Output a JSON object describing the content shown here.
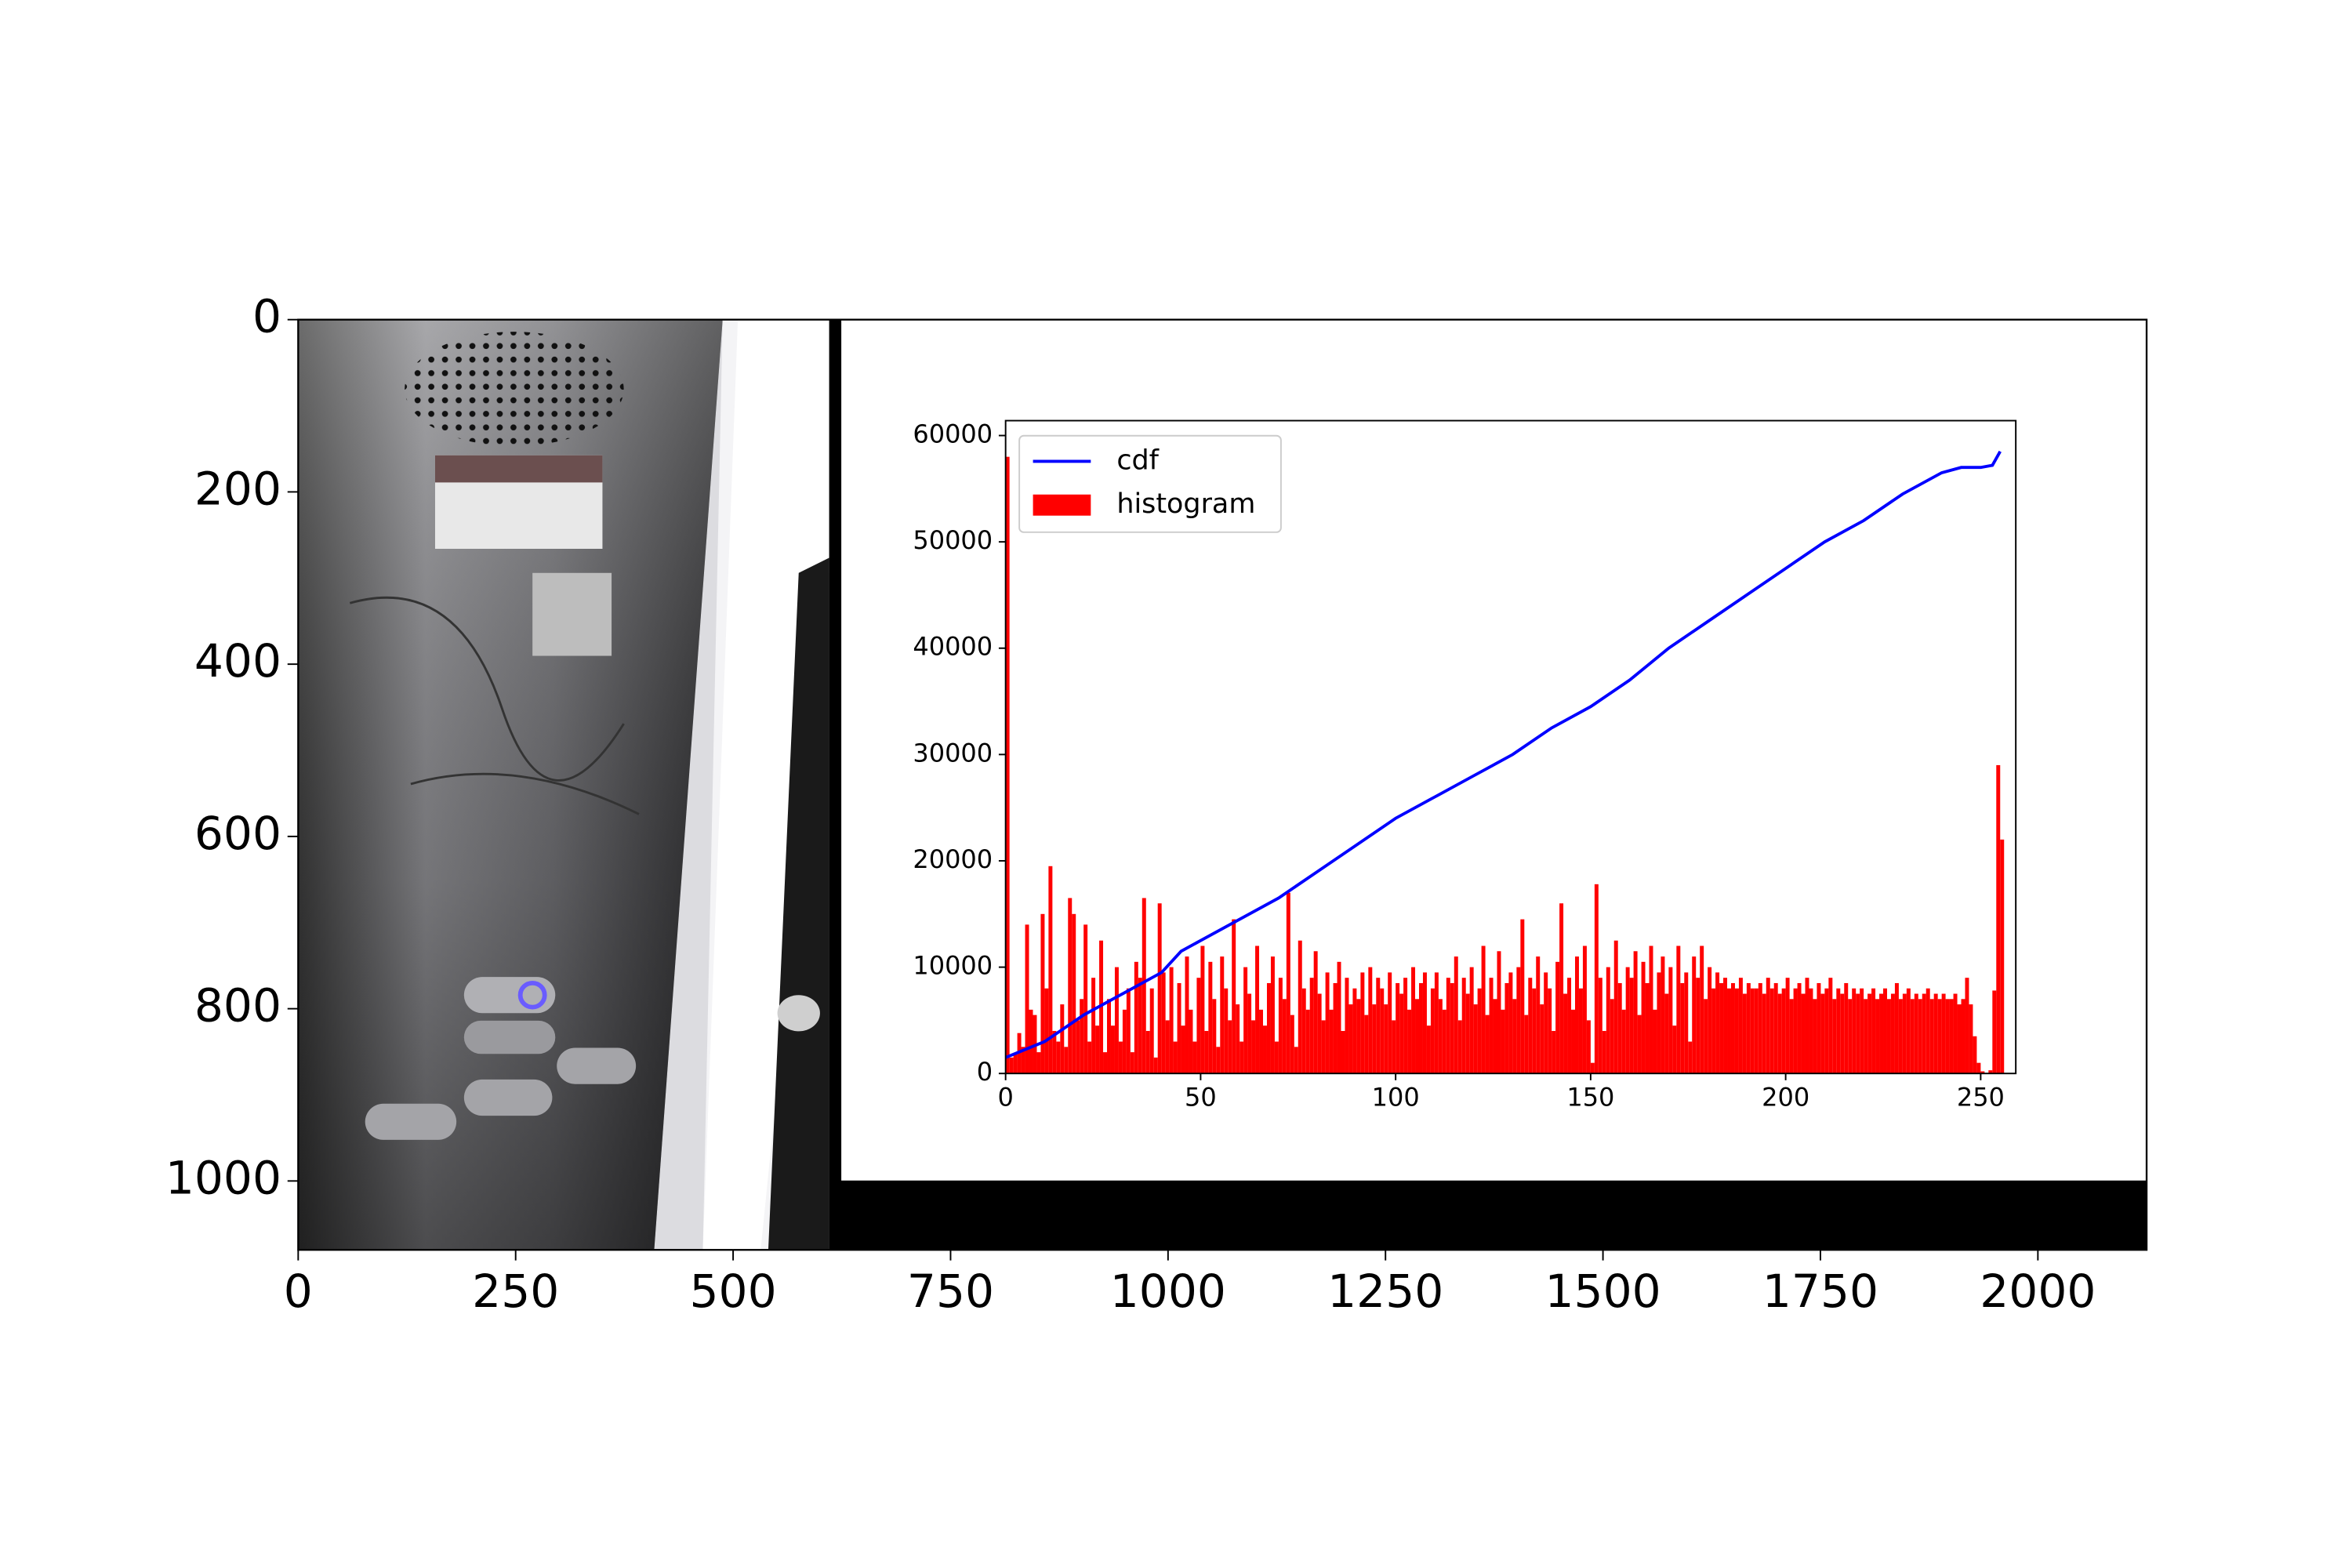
{
  "chart_data": [
    {
      "type": "image",
      "xlim": [
        0,
        2125
      ],
      "ylim": [
        1080,
        0
      ],
      "xticks": [
        0,
        250,
        500,
        750,
        1000,
        1250,
        1500,
        1750,
        2000
      ],
      "yticks": [
        0,
        200,
        400,
        600,
        800,
        1000
      ]
    },
    {
      "type": "histogram",
      "xlim": [
        0,
        259
      ],
      "ylim": [
        0,
        61400
      ],
      "xticks": [
        0,
        50,
        100,
        150,
        200,
        250
      ],
      "yticks": [
        0,
        10000,
        20000,
        30000,
        40000,
        50000,
        60000
      ],
      "legend": "upper left",
      "series": [
        {
          "name": "cdf",
          "type": "line",
          "color": "#0000ff",
          "x": [
            0,
            10,
            20,
            30,
            40,
            45,
            50,
            60,
            70,
            80,
            90,
            100,
            110,
            120,
            130,
            140,
            150,
            160,
            170,
            180,
            190,
            200,
            210,
            220,
            230,
            240,
            245,
            250,
            253,
            255
          ],
          "values": [
            1500,
            3000,
            5500,
            7500,
            9500,
            11500,
            12500,
            14500,
            16500,
            19000,
            21500,
            24000,
            26000,
            28000,
            30000,
            32500,
            34500,
            37000,
            40000,
            42500,
            45000,
            47500,
            50000,
            52000,
            54500,
            56500,
            57000,
            57000,
            57200,
            58500
          ]
        },
        {
          "name": "histogram",
          "type": "histogram",
          "color": "#ff0000",
          "bins": [
            0,
            1,
            2,
            3,
            4,
            5,
            6,
            7,
            8,
            9,
            10,
            11,
            12,
            13,
            14,
            15,
            16,
            17,
            18,
            19,
            20,
            21,
            22,
            23,
            24,
            25,
            26,
            27,
            28,
            29,
            30,
            31,
            32,
            33,
            34,
            35,
            36,
            37,
            38,
            39,
            40,
            41,
            42,
            43,
            44,
            45,
            46,
            47,
            48,
            49,
            50,
            51,
            52,
            53,
            54,
            55,
            56,
            57,
            58,
            59,
            60,
            61,
            62,
            63,
            64,
            65,
            66,
            67,
            68,
            69,
            70,
            71,
            72,
            73,
            74,
            75,
            76,
            77,
            78,
            79,
            80,
            81,
            82,
            83,
            84,
            85,
            86,
            87,
            88,
            89,
            90,
            91,
            92,
            93,
            94,
            95,
            96,
            97,
            98,
            99,
            100,
            101,
            102,
            103,
            104,
            105,
            106,
            107,
            108,
            109,
            110,
            111,
            112,
            113,
            114,
            115,
            116,
            117,
            118,
            119,
            120,
            121,
            122,
            123,
            124,
            125,
            126,
            127,
            128,
            129,
            130,
            131,
            132,
            133,
            134,
            135,
            136,
            137,
            138,
            139,
            140,
            141,
            142,
            143,
            144,
            145,
            146,
            147,
            148,
            149,
            150,
            151,
            152,
            153,
            154,
            155,
            156,
            157,
            158,
            159,
            160,
            161,
            162,
            163,
            164,
            165,
            166,
            167,
            168,
            169,
            170,
            171,
            172,
            173,
            174,
            175,
            176,
            177,
            178,
            179,
            180,
            181,
            182,
            183,
            184,
            185,
            186,
            187,
            188,
            189,
            190,
            191,
            192,
            193,
            194,
            195,
            196,
            197,
            198,
            199,
            200,
            201,
            202,
            203,
            204,
            205,
            206,
            207,
            208,
            209,
            210,
            211,
            212,
            213,
            214,
            215,
            216,
            217,
            218,
            219,
            220,
            221,
            222,
            223,
            224,
            225,
            226,
            227,
            228,
            229,
            230,
            231,
            232,
            233,
            234,
            235,
            236,
            237,
            238,
            239,
            240,
            241,
            242,
            243,
            244,
            245,
            246,
            247,
            248,
            249,
            250,
            251,
            252,
            253,
            254,
            255,
            256
          ],
          "values": [
            58000,
            1500,
            1800,
            3800,
            2500,
            14000,
            6000,
            5500,
            2000,
            15000,
            8000,
            19500,
            4000,
            3000,
            6500,
            2500,
            16500,
            15000,
            5000,
            7000,
            14000,
            3000,
            9000,
            4500,
            12500,
            2000,
            7000,
            4500,
            10000,
            3000,
            6000,
            8000,
            2000,
            10500,
            9000,
            16500,
            4000,
            8000,
            1500,
            16000,
            9500,
            5000,
            10000,
            3000,
            8500,
            4500,
            11000,
            6000,
            3000,
            9000,
            12000,
            4000,
            10500,
            7000,
            2500,
            11000,
            8000,
            5000,
            14500,
            6500,
            3000,
            10000,
            7500,
            5000,
            12000,
            6000,
            4500,
            8500,
            11000,
            3000,
            9000,
            7000,
            17000,
            5500,
            2500,
            12500,
            8000,
            6000,
            9000,
            11500,
            7500,
            5000,
            9500,
            6000,
            8500,
            10500,
            4000,
            9000,
            6500,
            8000,
            7000,
            9500,
            5500,
            10000,
            6500,
            9000,
            8000,
            6500,
            9500,
            5000,
            8500,
            7500,
            9000,
            6000,
            10000,
            7000,
            8500,
            9500,
            4500,
            8000,
            9500,
            7000,
            6000,
            9000,
            8500,
            11000,
            5000,
            9000,
            7500,
            10000,
            6500,
            8000,
            12000,
            5500,
            9000,
            7000,
            11500,
            6000,
            8500,
            9500,
            7000,
            10000,
            14500,
            5500,
            9000,
            8000,
            11000,
            6500,
            9500,
            8000,
            4000,
            10500,
            16000,
            7500,
            9000,
            6000,
            11000,
            8000,
            12000,
            5000,
            1000,
            17800,
            9000,
            4000,
            10000,
            7000,
            12500,
            8500,
            6000,
            10000,
            9000,
            11500,
            5500,
            10500,
            8500,
            12000,
            6000,
            9500,
            11000,
            7500,
            10000,
            4500,
            12000,
            8500,
            9500,
            3000,
            11000,
            9000,
            12000,
            7000,
            10000,
            8000,
            9500,
            8500,
            9000,
            8000,
            8500,
            8000,
            9000,
            7500,
            8500,
            8000,
            8000,
            8500,
            7500,
            9000,
            8000,
            8500,
            7500,
            8000,
            9000,
            7000,
            8000,
            8500,
            7500,
            9000,
            8000,
            7000,
            8500,
            7500,
            8000,
            9000,
            7000,
            8000,
            7500,
            8500,
            7000,
            8000,
            7500,
            8000,
            7000,
            7500,
            8000,
            7000,
            7500,
            8000,
            7000,
            7500,
            8500,
            7000,
            7500,
            8000,
            7000,
            7500,
            7000,
            7500,
            8000,
            7000,
            7500,
            7000,
            7500,
            7000,
            7000,
            7500,
            6500,
            7000,
            9000,
            6500,
            3500,
            1000,
            200,
            0,
            300,
            7800,
            29000,
            22000
          ]
        }
      ]
    }
  ]
}
